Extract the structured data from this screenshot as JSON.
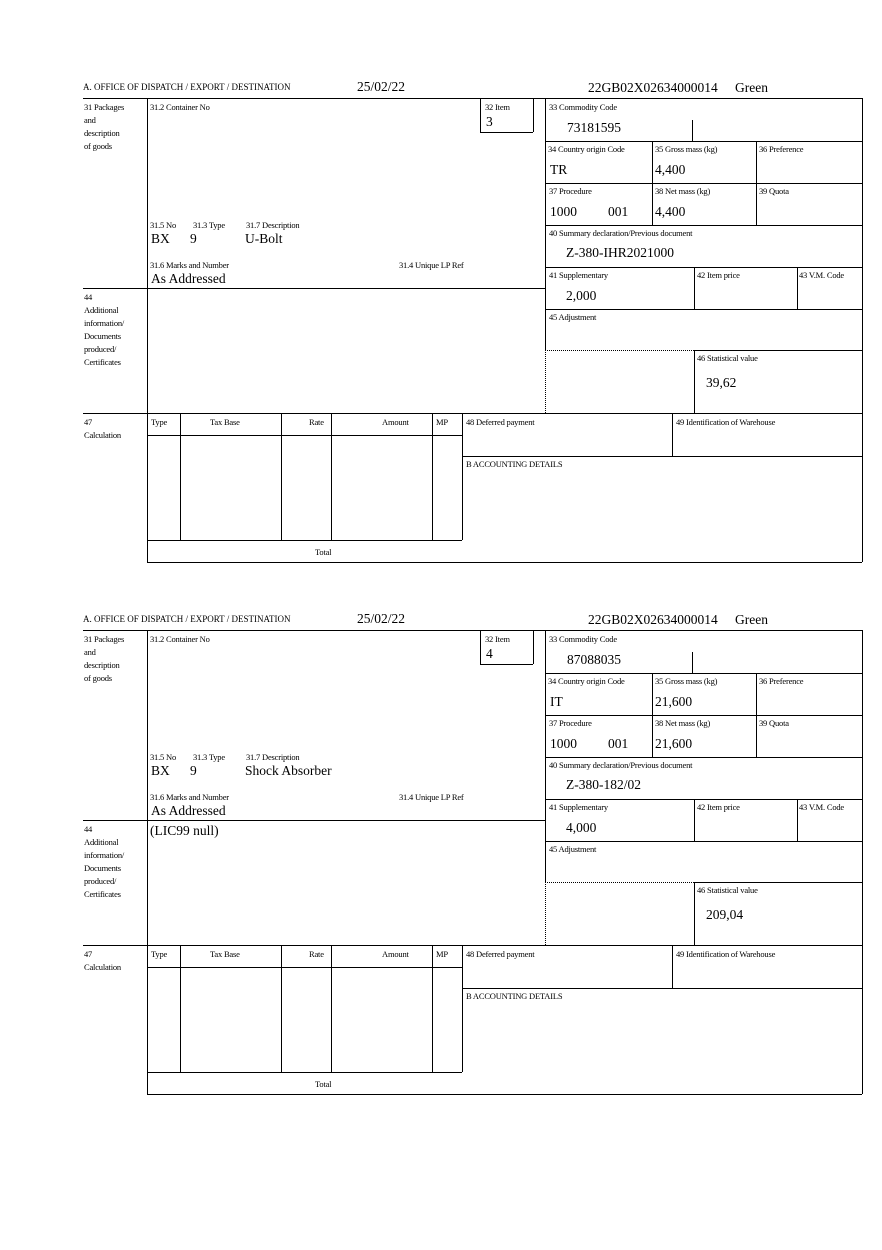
{
  "labels": {
    "office": "A. OFFICE OF DISPATCH / EXPORT / DESTINATION",
    "packages": [
      "31 Packages",
      "and",
      "description",
      "of goods"
    ],
    "container_no": "31.2 Container No",
    "item": "32 Item",
    "commodity_code": "33 Commodity Code",
    "country_origin": "34 Country origin Code",
    "gross_mass": "35 Gross mass (kg)",
    "preference": "36 Preference",
    "procedure": "37 Procedure",
    "net_mass": "38 Net mass (kg)",
    "quota": "39 Quota",
    "summary_declaration": "40 Summary declaration/Previous document",
    "supplementary": "41 Supplementary",
    "item_price": "42 Item price",
    "vm_code": "43 V.M. Code",
    "adjustment": "45 Adjustment",
    "statistical_value": "46 Statistical value",
    "no": "31.5 No",
    "type": "31.3 Type",
    "description": "31.7 Description",
    "marks": "31.6 Marks and Number",
    "unique_lp_ref": "31.4 Unique LP Ref",
    "additional_info": [
      "44",
      "Additional",
      "information/",
      "Documents",
      "produced/",
      "Certificates"
    ],
    "calculation": [
      "47",
      "Calculation"
    ],
    "calc_headers": [
      "Type",
      "Tax Base",
      "Rate",
      "Amount",
      "MP"
    ],
    "deferred_payment": "48 Deferred payment",
    "warehouse": "49 Identification of Warehouse",
    "accounting": "B ACCOUNTING DETAILS",
    "total": "Total"
  },
  "forms": [
    {
      "date": "25/02/22",
      "reference": "22GB02X02634000014",
      "route": "Green",
      "item": "3",
      "commodity_code": "73181595",
      "country_origin": "TR",
      "gross_mass": "4,400",
      "procedure": "1000",
      "procedure_extra": "001",
      "net_mass": "4,400",
      "summary_declaration": "Z-380-IHR2021000",
      "supplementary": "2,000",
      "statistical_value": "39,62",
      "no": "BX",
      "type": "9",
      "description": "U-Bolt",
      "marks": "As Addressed",
      "additional_info": ""
    },
    {
      "date": "25/02/22",
      "reference": "22GB02X02634000014",
      "route": "Green",
      "item": "4",
      "commodity_code": "87088035",
      "country_origin": "IT",
      "gross_mass": "21,600",
      "procedure": "1000",
      "procedure_extra": "001",
      "net_mass": "21,600",
      "summary_declaration": "Z-380-182/02",
      "supplementary": "4,000",
      "statistical_value": "209,04",
      "no": "BX",
      "type": "9",
      "description": "Shock Absorber",
      "marks": "As Addressed",
      "additional_info": "(LIC99 null)"
    }
  ]
}
